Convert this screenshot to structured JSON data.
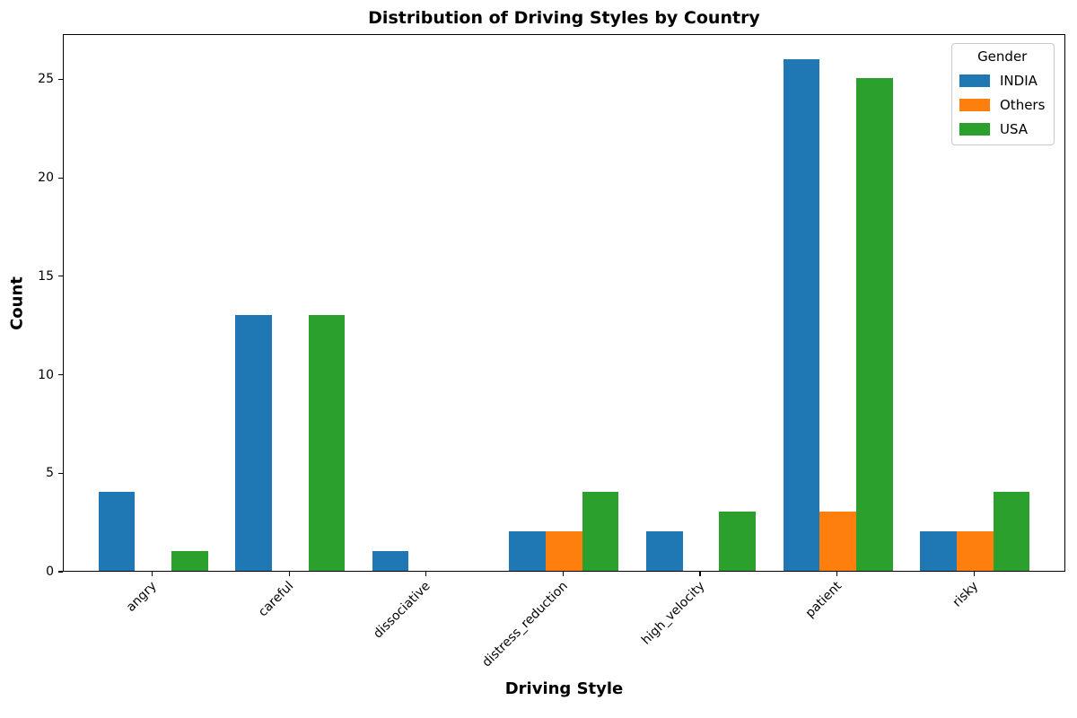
{
  "chart_data": {
    "type": "bar",
    "title": "Distribution of Driving Styles by Country",
    "xlabel": "Driving Style",
    "ylabel": "Count",
    "legend_title": "Gender",
    "legend_position": "upper right",
    "grid": false,
    "background": "#ffffff",
    "categories": [
      "angry",
      "careful",
      "dissociative",
      "distress_reduction",
      "high_velocity",
      "patient",
      "risky"
    ],
    "series": [
      {
        "name": "INDIA",
        "color": "#1f77b4",
        "values": [
          4,
          13,
          1,
          2,
          2,
          26,
          2
        ]
      },
      {
        "name": "Others",
        "color": "#ff7f0e",
        "values": [
          0,
          0,
          0,
          2,
          0,
          3,
          2
        ]
      },
      {
        "name": "USA",
        "color": "#2ca02c",
        "values": [
          1,
          13,
          0,
          4,
          3,
          25,
          4
        ]
      }
    ],
    "yticks": [
      0,
      5,
      10,
      15,
      20,
      25
    ],
    "ylim": [
      0,
      27.3
    ],
    "xtick_rotation": 45
  }
}
